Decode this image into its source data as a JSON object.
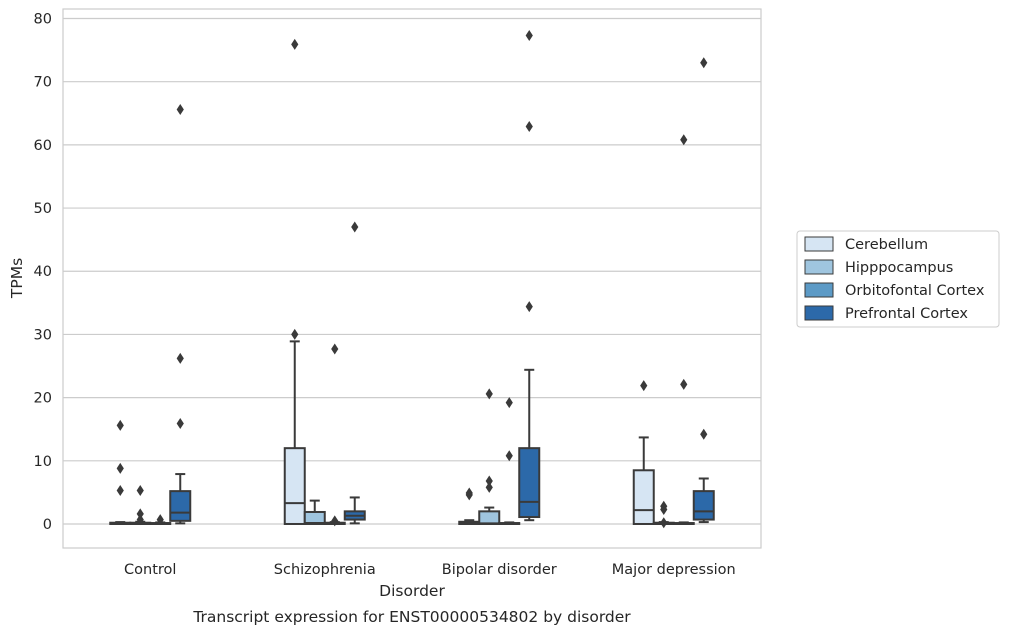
{
  "chart_data": {
    "type": "boxplot",
    "title": "",
    "caption": "Transcript expression for ENST00000534802 by disorder",
    "xlabel": "Disorder",
    "ylabel": "TPMs",
    "ylim": [
      -3.8,
      81.5
    ],
    "yticks": [
      0,
      10,
      20,
      30,
      40,
      50,
      60,
      70,
      80
    ],
    "grid": "horizontal",
    "legend_placement": "right",
    "categories": [
      "Control",
      "Schizophrenia",
      "Bipolar disorder",
      "Major depression"
    ],
    "series": [
      {
        "name": "Cerebellum",
        "color": "#d6e5f3",
        "boxes": [
          {
            "whisker_low": 0,
            "q1": 0,
            "median": 0.05,
            "q3": 0.2,
            "whisker_high": 0.3,
            "outliers": [
              15.6,
              8.8,
              5.3
            ]
          },
          {
            "whisker_low": 0,
            "q1": 0,
            "median": 3.3,
            "q3": 12.0,
            "whisker_high": 28.9,
            "outliers": [
              75.9,
              30.0
            ]
          },
          {
            "whisker_low": 0,
            "q1": 0,
            "median": 0.1,
            "q3": 0.35,
            "whisker_high": 0.6,
            "outliers": [
              4.9,
              4.6
            ]
          },
          {
            "whisker_low": 0,
            "q1": 0,
            "median": 2.2,
            "q3": 8.5,
            "whisker_high": 13.7,
            "outliers": [
              21.9
            ]
          }
        ]
      },
      {
        "name": "Hipppocampus",
        "color": "#9fc5df",
        "boxes": [
          {
            "whisker_low": 0,
            "q1": 0,
            "median": 0.05,
            "q3": 0.2,
            "whisker_high": 0.35,
            "outliers": [
              5.3,
              1.6,
              0.7
            ]
          },
          {
            "whisker_low": 0,
            "q1": 0,
            "median": 0.15,
            "q3": 1.9,
            "whisker_high": 3.7,
            "outliers": []
          },
          {
            "whisker_low": 0,
            "q1": 0,
            "median": 0.1,
            "q3": 2.0,
            "whisker_high": 2.6,
            "outliers": [
              20.6,
              6.8,
              5.8
            ]
          },
          {
            "whisker_low": 0,
            "q1": 0,
            "median": 0.05,
            "q3": 0.2,
            "whisker_high": 0.3,
            "outliers": [
              2.8,
              2.3,
              0.2
            ]
          }
        ]
      },
      {
        "name": "Orbitofontal Cortex",
        "color": "#5c9ac6",
        "boxes": [
          {
            "whisker_low": 0,
            "q1": 0,
            "median": 0.05,
            "q3": 0.15,
            "whisker_high": 0.25,
            "outliers": [
              0.7
            ]
          },
          {
            "whisker_low": 0,
            "q1": 0,
            "median": 0.05,
            "q3": 0.2,
            "whisker_high": 0.3,
            "outliers": [
              27.7,
              0.5
            ]
          },
          {
            "whisker_low": 0,
            "q1": 0,
            "median": 0.05,
            "q3": 0.15,
            "whisker_high": 0.25,
            "outliers": [
              19.2,
              10.8
            ]
          },
          {
            "whisker_low": 0,
            "q1": 0,
            "median": 0.05,
            "q3": 0.15,
            "whisker_high": 0.25,
            "outliers": [
              60.8,
              22.1
            ]
          }
        ]
      },
      {
        "name": "Prefrontal Cortex",
        "color": "#2c69a9",
        "boxes": [
          {
            "whisker_low": 0.1,
            "q1": 0.5,
            "median": 1.8,
            "q3": 5.2,
            "whisker_high": 7.9,
            "outliers": [
              65.6,
              26.2,
              15.9
            ]
          },
          {
            "whisker_low": 0.1,
            "q1": 0.7,
            "median": 1.3,
            "q3": 2.0,
            "whisker_high": 4.2,
            "outliers": [
              47.0
            ]
          },
          {
            "whisker_low": 0.6,
            "q1": 1.1,
            "median": 3.5,
            "q3": 12.0,
            "whisker_high": 24.4,
            "outliers": [
              77.3,
              62.9,
              34.4
            ]
          },
          {
            "whisker_low": 0.3,
            "q1": 0.7,
            "median": 2.0,
            "q3": 5.2,
            "whisker_high": 7.2,
            "outliers": [
              73.0,
              14.2
            ]
          }
        ]
      }
    ]
  }
}
